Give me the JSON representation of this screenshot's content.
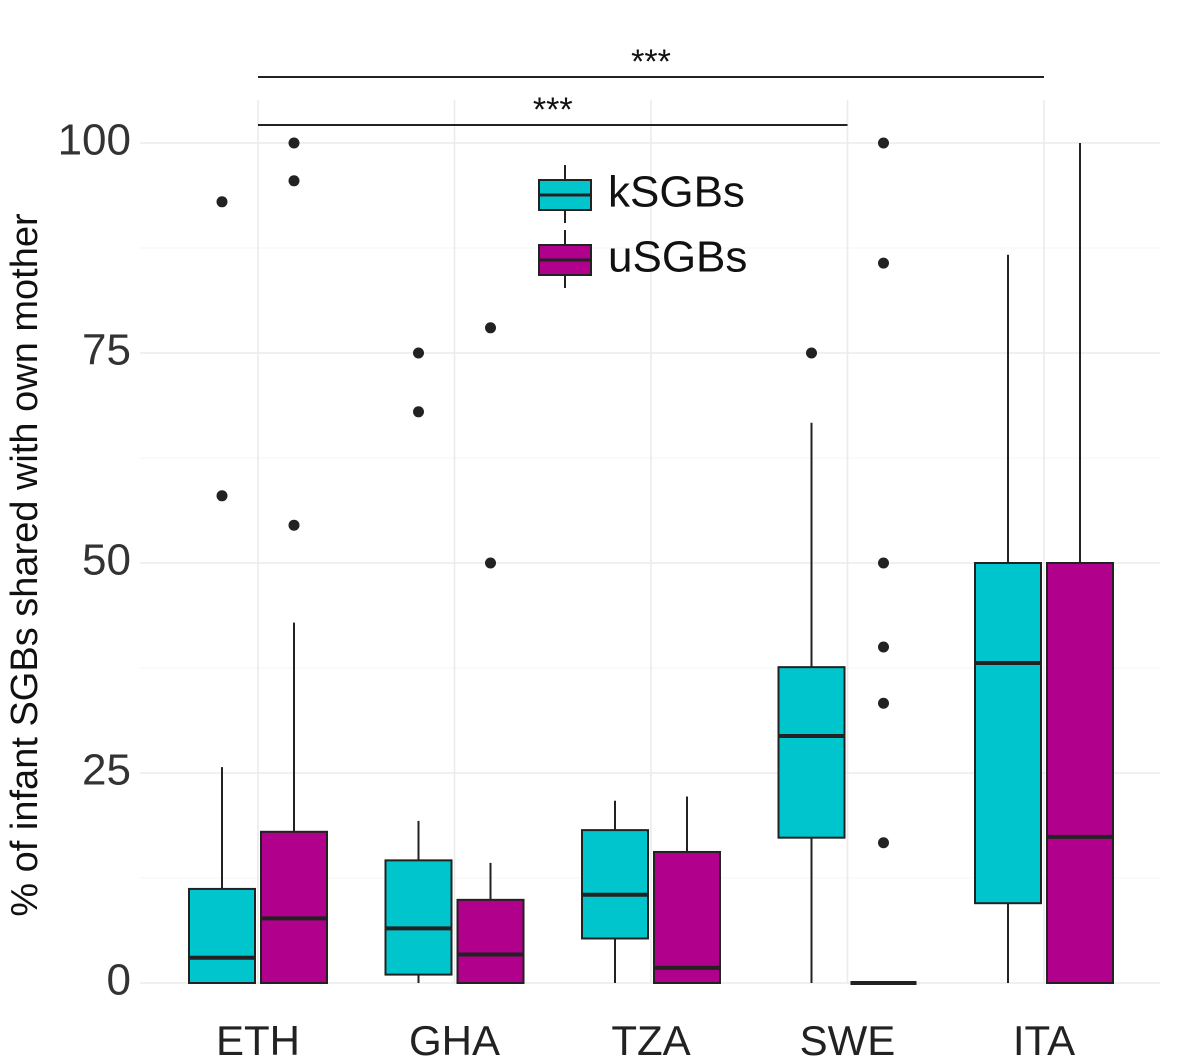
{
  "chart_data": {
    "type": "boxplot",
    "title": "",
    "xlabel": "",
    "ylabel": "% of infant SGBs shared with own mother",
    "ylim": [
      0,
      100
    ],
    "yticks": [
      0,
      25,
      50,
      75,
      100
    ],
    "ytick_labels": [
      "0",
      "25",
      "50",
      "75",
      "100"
    ],
    "grid": true,
    "legend": {
      "position": "top-center",
      "entries": [
        "kSGBs",
        "uSGBs"
      ]
    },
    "categories": [
      "ETH",
      "GHA",
      "TZA",
      "SWE",
      "ITA"
    ],
    "colors": {
      "kSGBs": "#00c5cd",
      "uSGBs": "#b0008c",
      "line": "#222222"
    },
    "series": [
      {
        "name": "kSGBs",
        "boxes": [
          {
            "category": "ETH",
            "min": 0,
            "q1": 0,
            "median": 3,
            "q3": 11.2,
            "max": 25.7,
            "outliers": [
              58,
              93
            ]
          },
          {
            "category": "GHA",
            "min": 0,
            "q1": 1,
            "median": 6.5,
            "q3": 14.6,
            "max": 19.3,
            "outliers": [
              68,
              75
            ]
          },
          {
            "category": "TZA",
            "min": 0,
            "q1": 5.3,
            "median": 10.5,
            "q3": 18.2,
            "max": 21.7,
            "outliers": []
          },
          {
            "category": "SWE",
            "min": 0,
            "q1": 17.3,
            "median": 29.4,
            "q3": 37.6,
            "max": 66.7,
            "outliers": [
              75
            ]
          },
          {
            "category": "ITA",
            "min": 0,
            "q1": 9.5,
            "median": 38.1,
            "q3": 50,
            "max": 86.7,
            "outliers": []
          }
        ]
      },
      {
        "name": "uSGBs",
        "boxes": [
          {
            "category": "ETH",
            "min": 0,
            "q1": 0,
            "median": 7.7,
            "q3": 18,
            "max": 42.9,
            "outliers": [
              54.5,
              95.5,
              100
            ]
          },
          {
            "category": "GHA",
            "min": 0,
            "q1": 0,
            "median": 3.4,
            "q3": 9.9,
            "max": 14.3,
            "outliers": [
              50,
              78
            ]
          },
          {
            "category": "TZA",
            "min": 0,
            "q1": 0,
            "median": 1.8,
            "q3": 15.6,
            "max": 22.2,
            "outliers": []
          },
          {
            "category": "SWE",
            "min": 0,
            "q1": 0,
            "median": 0,
            "q3": 0,
            "max": 0,
            "outliers": [
              16.7,
              33.3,
              40,
              50,
              85.7,
              100
            ]
          },
          {
            "category": "ITA",
            "min": 0,
            "q1": 0,
            "median": 17.4,
            "q3": 50,
            "max": 100,
            "outliers": []
          }
        ]
      }
    ],
    "annotations": [
      {
        "label": "***",
        "from": "ETH",
        "to": "ITA",
        "level": 1
      },
      {
        "label": "***",
        "from": "ETH",
        "to": "SWE",
        "level": 0
      }
    ]
  }
}
